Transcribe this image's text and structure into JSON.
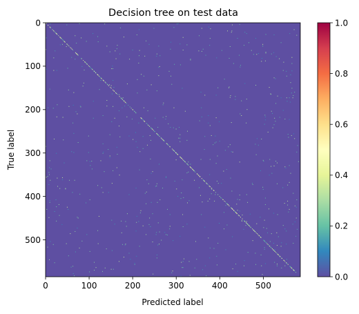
{
  "chart_data": {
    "type": "heatmap",
    "title": "Decision tree on test data",
    "xlabel": "Predicted label",
    "ylabel": "True label",
    "n_classes": 585,
    "xlim": [
      0,
      585
    ],
    "ylim": [
      585,
      0
    ],
    "x_ticks": [
      0,
      100,
      200,
      300,
      400,
      500
    ],
    "y_ticks": [
      0,
      100,
      200,
      300,
      400,
      500
    ],
    "colorbar": {
      "range": [
        0.0,
        1.0
      ],
      "ticks": [
        "0.0",
        "0.2",
        "0.4",
        "0.6",
        "0.8",
        "1.0"
      ],
      "colormap": "Spectral_r",
      "stops": [
        "#5e4fa2",
        "#3288bd",
        "#66c2a5",
        "#abdda4",
        "#e6f598",
        "#ffffbf",
        "#fee08b",
        "#fdae61",
        "#f46d43",
        "#d53e4f",
        "#9e0142"
      ]
    },
    "background_value": 0.0,
    "diagonal_value_range": [
      0.15,
      0.5
    ],
    "offdiagonal_value_range": [
      0.1,
      0.35
    ],
    "diagonal_fraction_highlighted": 0.55,
    "offdiagonal_highlight_count": 650
  }
}
